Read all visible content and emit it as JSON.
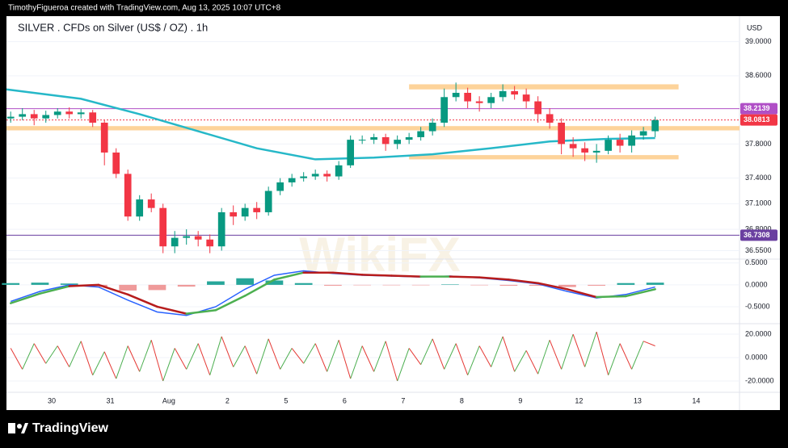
{
  "header": {
    "credit": "TimothyFigueroa created with TradingView.com, Aug 13, 2025 10:07 UTC+8"
  },
  "footer": {
    "brand": "TradingView"
  },
  "watermark": "WikiFX",
  "chart_data": [
    {
      "type": "candlestick",
      "title": "SILVER . CFDs on Silver (US$ / OZ) . 1h",
      "y_unit": "USD",
      "up_color": "#089981",
      "down_color": "#f23645",
      "x": [
        -0.7,
        -0.5,
        -0.3,
        -0.1,
        0.1,
        0.3,
        0.5,
        0.7,
        0.9,
        1.1,
        1.3,
        1.5,
        1.7,
        1.9,
        2.1,
        2.3,
        2.5,
        2.7,
        2.9,
        3.1,
        3.3,
        3.5,
        3.7,
        3.9,
        4.1,
        4.3,
        4.5,
        4.7,
        4.9,
        5.1,
        5.3,
        5.5,
        5.7,
        5.9,
        6.1,
        6.3,
        6.5,
        6.7,
        6.9,
        7.1,
        7.3,
        7.5,
        7.7,
        7.9,
        8.1,
        8.3,
        8.5,
        8.7,
        8.9,
        9.1,
        9.3,
        9.5,
        9.7,
        9.9,
        10.1,
        10.3
      ],
      "open": [
        38.1,
        38.12,
        38.15,
        38.1,
        38.14,
        38.18,
        38.15,
        38.17,
        38.05,
        37.7,
        37.45,
        36.95,
        37.15,
        37.05,
        36.6,
        36.7,
        36.72,
        36.68,
        36.6,
        37.0,
        36.95,
        37.05,
        37.0,
        37.25,
        37.35,
        37.4,
        37.42,
        37.45,
        37.42,
        37.55,
        37.85,
        37.85,
        37.88,
        37.8,
        37.85,
        37.88,
        37.95,
        38.05,
        38.35,
        38.4,
        38.3,
        38.28,
        38.35,
        38.42,
        38.38,
        38.3,
        38.15,
        38.05,
        37.8,
        37.75,
        37.7,
        37.72,
        37.85,
        37.78,
        37.9,
        37.95
      ],
      "high": [
        38.18,
        38.22,
        38.2,
        38.19,
        38.22,
        38.23,
        38.21,
        38.2,
        38.08,
        37.75,
        37.5,
        37.2,
        37.22,
        37.1,
        36.78,
        36.8,
        36.78,
        36.74,
        37.05,
        37.08,
        37.1,
        37.12,
        37.3,
        37.4,
        37.45,
        37.47,
        37.5,
        37.49,
        37.6,
        37.9,
        37.9,
        37.92,
        37.92,
        37.9,
        37.93,
        38.0,
        38.1,
        38.45,
        38.52,
        38.46,
        38.36,
        38.4,
        38.5,
        38.48,
        38.45,
        38.36,
        38.22,
        38.1,
        37.88,
        37.82,
        37.8,
        37.9,
        37.92,
        37.96,
        38.0,
        38.12
      ],
      "low": [
        38.05,
        38.08,
        38.02,
        38.05,
        38.1,
        38.1,
        38.1,
        38.0,
        37.55,
        37.4,
        36.9,
        36.9,
        37.0,
        36.52,
        36.52,
        36.62,
        36.6,
        36.52,
        36.55,
        36.85,
        36.9,
        36.92,
        36.96,
        37.2,
        37.3,
        37.36,
        37.38,
        37.36,
        37.38,
        37.52,
        37.8,
        37.8,
        37.72,
        37.74,
        37.8,
        37.84,
        37.9,
        38.0,
        38.3,
        38.22,
        38.18,
        38.22,
        38.3,
        38.32,
        38.22,
        38.05,
        37.98,
        37.68,
        37.65,
        37.6,
        37.58,
        37.68,
        37.7,
        37.7,
        37.85,
        37.88
      ],
      "close": [
        38.12,
        38.15,
        38.1,
        38.14,
        38.18,
        38.15,
        38.17,
        38.05,
        37.7,
        37.45,
        36.95,
        37.15,
        37.05,
        36.6,
        36.7,
        36.72,
        36.68,
        36.6,
        37.0,
        36.95,
        37.05,
        37.0,
        37.25,
        37.35,
        37.4,
        37.42,
        37.45,
        37.42,
        37.55,
        37.85,
        37.85,
        37.88,
        37.8,
        37.85,
        37.88,
        37.95,
        38.05,
        38.35,
        38.4,
        38.3,
        38.28,
        38.35,
        38.42,
        38.38,
        38.3,
        38.15,
        38.05,
        37.8,
        37.75,
        37.7,
        37.72,
        37.85,
        37.78,
        37.9,
        37.95,
        38.08
      ],
      "ma": {
        "color": "#26b8c8",
        "x": [
          -0.772,
          0.5,
          1.5,
          2.5,
          3.5,
          4.5,
          5.5,
          6.5,
          7.5,
          8.5,
          9.5,
          10.3
        ],
        "values": [
          38.44,
          38.33,
          38.15,
          37.95,
          37.75,
          37.62,
          37.64,
          37.68,
          37.75,
          37.83,
          37.86,
          37.87
        ]
      },
      "zones": [
        {
          "from": 38.44,
          "to": 38.5,
          "x": [
            6.1,
            10.7
          ],
          "color": "#fdd39a"
        },
        {
          "from": 37.96,
          "to": 38.01,
          "color": "#fdd39a"
        },
        {
          "from": 37.62,
          "to": 37.67,
          "x": [
            6.1,
            10.7
          ],
          "color": "#fdd39a"
        }
      ],
      "price_lines": [
        {
          "value": 38.2139,
          "label": "38.2139",
          "color": "#b04fc6",
          "dashed": false
        },
        {
          "value": 38.0813,
          "label": "38.0813",
          "color": "#f23645",
          "dashed": true
        },
        {
          "value": 36.7308,
          "label": "36.7308",
          "color": "#6a3fa0",
          "dashed": false
        }
      ],
      "xlim": [
        -0.772,
        11.74
      ],
      "xticks": [
        {
          "value": 0,
          "label": "30"
        },
        {
          "value": 1,
          "label": "31"
        },
        {
          "value": 2,
          "label": "Aug"
        },
        {
          "value": 3,
          "label": "2"
        },
        {
          "value": 4,
          "label": "5"
        },
        {
          "value": 5,
          "label": "6"
        },
        {
          "value": 6,
          "label": "7"
        },
        {
          "value": 7,
          "label": "8"
        },
        {
          "value": 8,
          "label": "9"
        },
        {
          "value": 9,
          "label": "12"
        },
        {
          "value": 10,
          "label": "13"
        },
        {
          "value": 11,
          "label": "14"
        }
      ],
      "ylim": [
        36.46,
        39.28
      ],
      "yticks": [
        {
          "value": 39,
          "label": "39.0000"
        },
        {
          "value": 38.6,
          "label": "38.6000"
        },
        {
          "value": 37.8,
          "label": "37.8000"
        },
        {
          "value": 37.4,
          "label": "37.4000"
        },
        {
          "value": 37.1,
          "label": "37.1000"
        },
        {
          "value": 36.8,
          "label": "36.8000"
        },
        {
          "value": 36.55,
          "label": "36.5500"
        }
      ]
    },
    {
      "type": "macd",
      "x": [
        -0.7,
        -0.2,
        0.3,
        0.8,
        1.3,
        1.8,
        2.3,
        2.8,
        3.3,
        3.8,
        4.3,
        4.8,
        5.3,
        5.8,
        6.3,
        6.8,
        7.3,
        7.8,
        8.3,
        8.8,
        9.3,
        9.8,
        10.3
      ],
      "macd": {
        "color": "#2962ff",
        "values": [
          -0.38,
          -0.15,
          0.0,
          -0.05,
          -0.35,
          -0.62,
          -0.7,
          -0.5,
          -0.1,
          0.22,
          0.32,
          0.26,
          0.22,
          0.2,
          0.18,
          0.2,
          0.16,
          0.1,
          0.02,
          -0.15,
          -0.3,
          -0.22,
          -0.05
        ]
      },
      "signal": {
        "up_color": "#4caf50",
        "down_color": "#b71c1c",
        "values": [
          -0.42,
          -0.2,
          -0.03,
          0.0,
          -0.22,
          -0.5,
          -0.66,
          -0.58,
          -0.25,
          0.12,
          0.28,
          0.28,
          0.23,
          0.21,
          0.19,
          0.19,
          0.17,
          0.12,
          0.04,
          -0.1,
          -0.28,
          -0.26,
          -0.1
        ]
      },
      "histogram": {
        "up_color": "#26a69a",
        "down_color": "#ef9a9a",
        "values": [
          0.04,
          0.05,
          0.03,
          -0.05,
          -0.13,
          -0.12,
          -0.04,
          0.08,
          0.15,
          0.1,
          0.04,
          -0.02,
          -0.01,
          -0.01,
          -0.01,
          0.01,
          -0.01,
          -0.02,
          -0.02,
          -0.05,
          -0.02,
          0.04,
          0.05
        ]
      },
      "ylim": [
        -0.87,
        0.57
      ],
      "yticks": [
        {
          "value": 0.5,
          "label": "0.5000"
        },
        {
          "value": 0,
          "label": "0.0000"
        },
        {
          "value": -0.5,
          "label": "-0.5000"
        }
      ]
    },
    {
      "type": "line",
      "up_color": "#4caf50",
      "down_color": "#e53935",
      "x": [
        -0.7,
        -0.5,
        -0.3,
        -0.1,
        0.1,
        0.3,
        0.5,
        0.7,
        0.9,
        1.1,
        1.3,
        1.5,
        1.7,
        1.9,
        2.1,
        2.3,
        2.5,
        2.7,
        2.9,
        3.1,
        3.3,
        3.5,
        3.7,
        3.9,
        4.1,
        4.3,
        4.5,
        4.7,
        4.9,
        5.1,
        5.3,
        5.5,
        5.7,
        5.9,
        6.1,
        6.3,
        6.5,
        6.7,
        6.9,
        7.1,
        7.3,
        7.5,
        7.7,
        7.9,
        8.1,
        8.3,
        8.5,
        8.7,
        8.9,
        9.1,
        9.3,
        9.5,
        9.7,
        9.9,
        10.1,
        10.3
      ],
      "values": [
        8,
        -10,
        12,
        -5,
        10,
        -8,
        14,
        -15,
        5,
        -18,
        10,
        -12,
        15,
        -20,
        8,
        -10,
        12,
        -15,
        18,
        -8,
        10,
        -14,
        16,
        -10,
        8,
        -5,
        12,
        -12,
        15,
        -18,
        10,
        -12,
        14,
        -20,
        8,
        -6,
        16,
        -10,
        12,
        -15,
        10,
        -8,
        18,
        -12,
        6,
        -14,
        15,
        -10,
        20,
        -8,
        22,
        -15,
        12,
        -10,
        14,
        10
      ],
      "ylim": [
        -29,
        28.3
      ],
      "yticks": [
        {
          "value": 20,
          "label": "20.0000"
        },
        {
          "value": 0,
          "label": "0.0000"
        },
        {
          "value": -20,
          "label": "-20.0000"
        }
      ]
    }
  ]
}
